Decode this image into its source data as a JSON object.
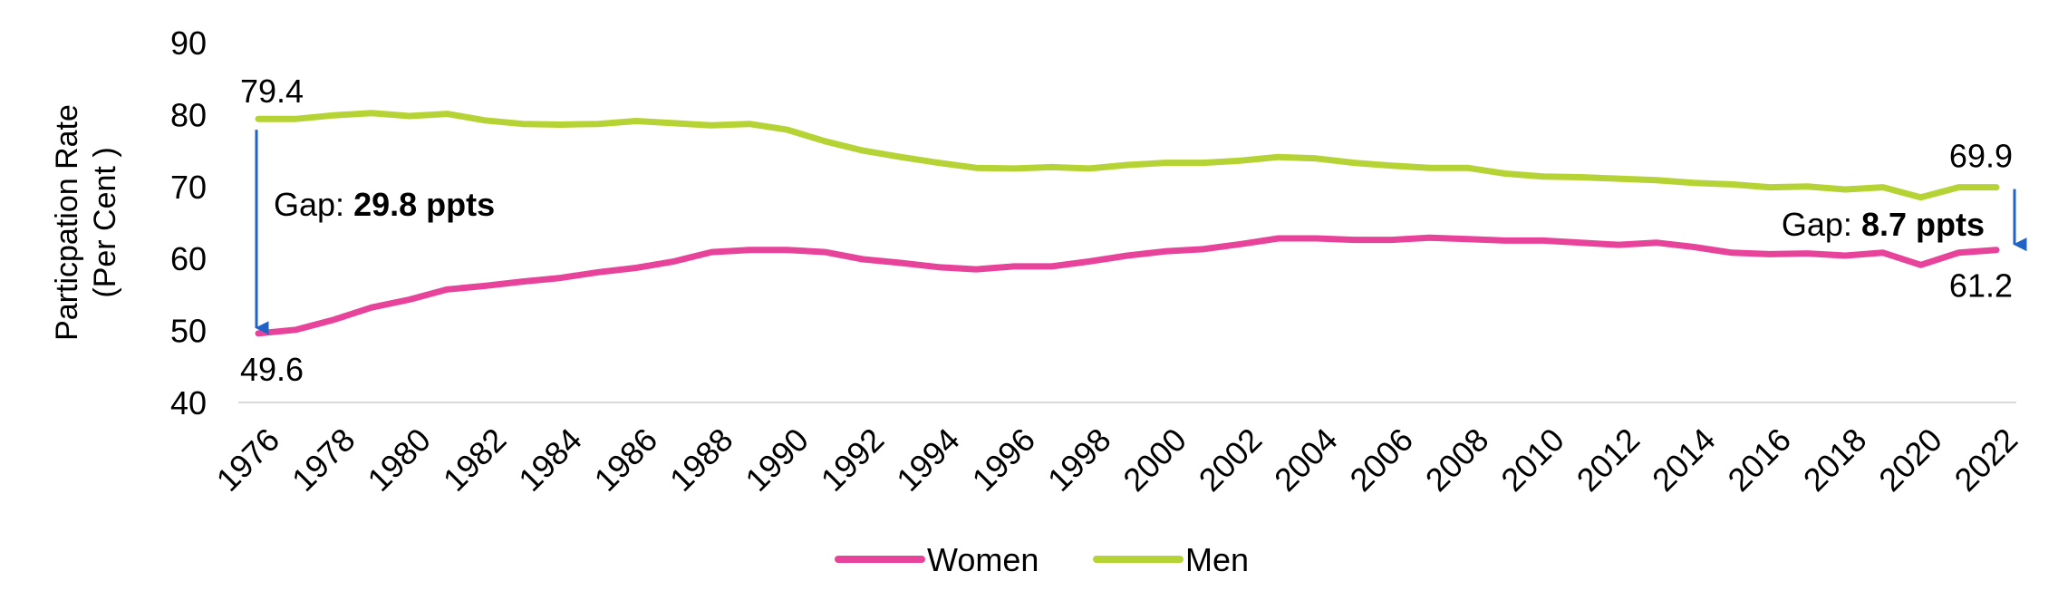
{
  "chart_data": {
    "type": "line",
    "ylabel": "Particpation Rate (Per Cent )",
    "ylim": [
      40,
      90
    ],
    "yticks": [
      "40",
      "50",
      "60",
      "70",
      "80",
      "90"
    ],
    "x": [
      1976,
      1977,
      1978,
      1979,
      1980,
      1981,
      1982,
      1983,
      1984,
      1985,
      1986,
      1987,
      1988,
      1989,
      1990,
      1991,
      1992,
      1993,
      1994,
      1995,
      1996,
      1997,
      1998,
      1999,
      2000,
      2001,
      2002,
      2003,
      2004,
      2005,
      2006,
      2007,
      2008,
      2009,
      2010,
      2011,
      2012,
      2013,
      2014,
      2015,
      2016,
      2017,
      2018,
      2019,
      2020,
      2021,
      2022
    ],
    "xticks": [
      "1976",
      "1978",
      "1980",
      "1982",
      "1984",
      "1986",
      "1988",
      "1990",
      "1992",
      "1994",
      "1996",
      "1998",
      "2000",
      "2002",
      "2004",
      "2006",
      "2008",
      "2010",
      "2012",
      "2014",
      "2016",
      "2018",
      "2020",
      "2022"
    ],
    "series": [
      {
        "name": "Women",
        "color": "#e8439b",
        "values": [
          49.6,
          50.1,
          51.5,
          53.2,
          54.3,
          55.7,
          56.2,
          56.8,
          57.3,
          58.1,
          58.7,
          59.6,
          60.9,
          61.2,
          61.2,
          60.9,
          59.9,
          59.4,
          58.8,
          58.5,
          58.9,
          58.9,
          59.6,
          60.4,
          61.0,
          61.3,
          62.0,
          62.8,
          62.8,
          62.6,
          62.6,
          62.9,
          62.7,
          62.5,
          62.5,
          62.2,
          61.9,
          62.2,
          61.6,
          60.8,
          60.6,
          60.7,
          60.4,
          60.8,
          59.1,
          60.8,
          61.2
        ]
      },
      {
        "name": "Men",
        "color": "#b5d334",
        "values": [
          79.4,
          79.4,
          79.9,
          80.2,
          79.8,
          80.1,
          79.2,
          78.7,
          78.6,
          78.7,
          79.1,
          78.8,
          78.5,
          78.7,
          77.9,
          76.3,
          75.0,
          74.1,
          73.3,
          72.6,
          72.5,
          72.7,
          72.5,
          73.0,
          73.3,
          73.3,
          73.6,
          74.1,
          73.9,
          73.3,
          72.9,
          72.6,
          72.6,
          71.8,
          71.4,
          71.3,
          71.1,
          70.9,
          70.5,
          70.3,
          69.9,
          70.0,
          69.6,
          69.9,
          68.5,
          69.9,
          69.9
        ]
      }
    ],
    "annotations": {
      "women_start": "49.6",
      "men_start": "79.4",
      "women_end": "61.2",
      "men_end": "69.9",
      "gap_start_prefix": "Gap: ",
      "gap_start_value": "29.8 ppts",
      "gap_end_prefix": "Gap: ",
      "gap_end_value": "8.7 ppts"
    },
    "legend": {
      "placement": "bottom-center"
    },
    "arrow_color": "#1f63c7",
    "axis_color": "#d9d9d9"
  }
}
